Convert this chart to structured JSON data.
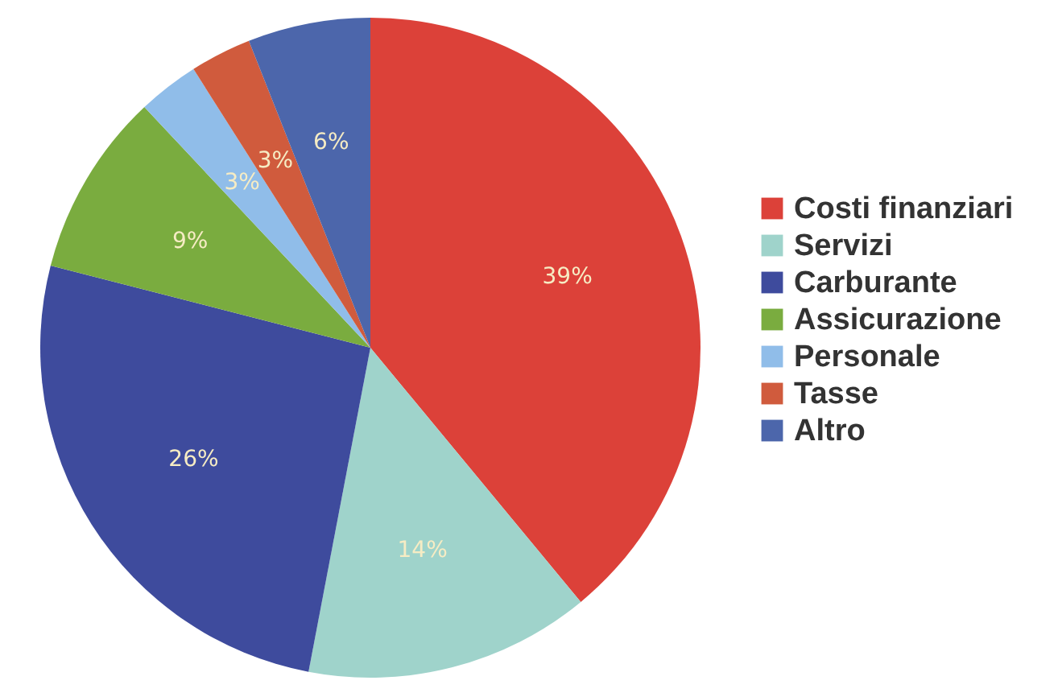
{
  "chart_data": {
    "type": "pie",
    "categories": [
      "Costi finanziari",
      "Servizi",
      "Carburante",
      "Assicurazione",
      "Personale",
      "Tasse",
      "Altro"
    ],
    "values": [
      39,
      14,
      26,
      9,
      3,
      3,
      6
    ],
    "colors": [
      "#dc4139",
      "#9fd3cb",
      "#3e4b9d",
      "#7aac3f",
      "#90bde9",
      "#d05b3d",
      "#4c66ab"
    ],
    "value_labels": [
      "39%",
      "14%",
      "26%",
      "9%",
      "3%",
      "3%",
      "6%"
    ],
    "legend": "right"
  }
}
